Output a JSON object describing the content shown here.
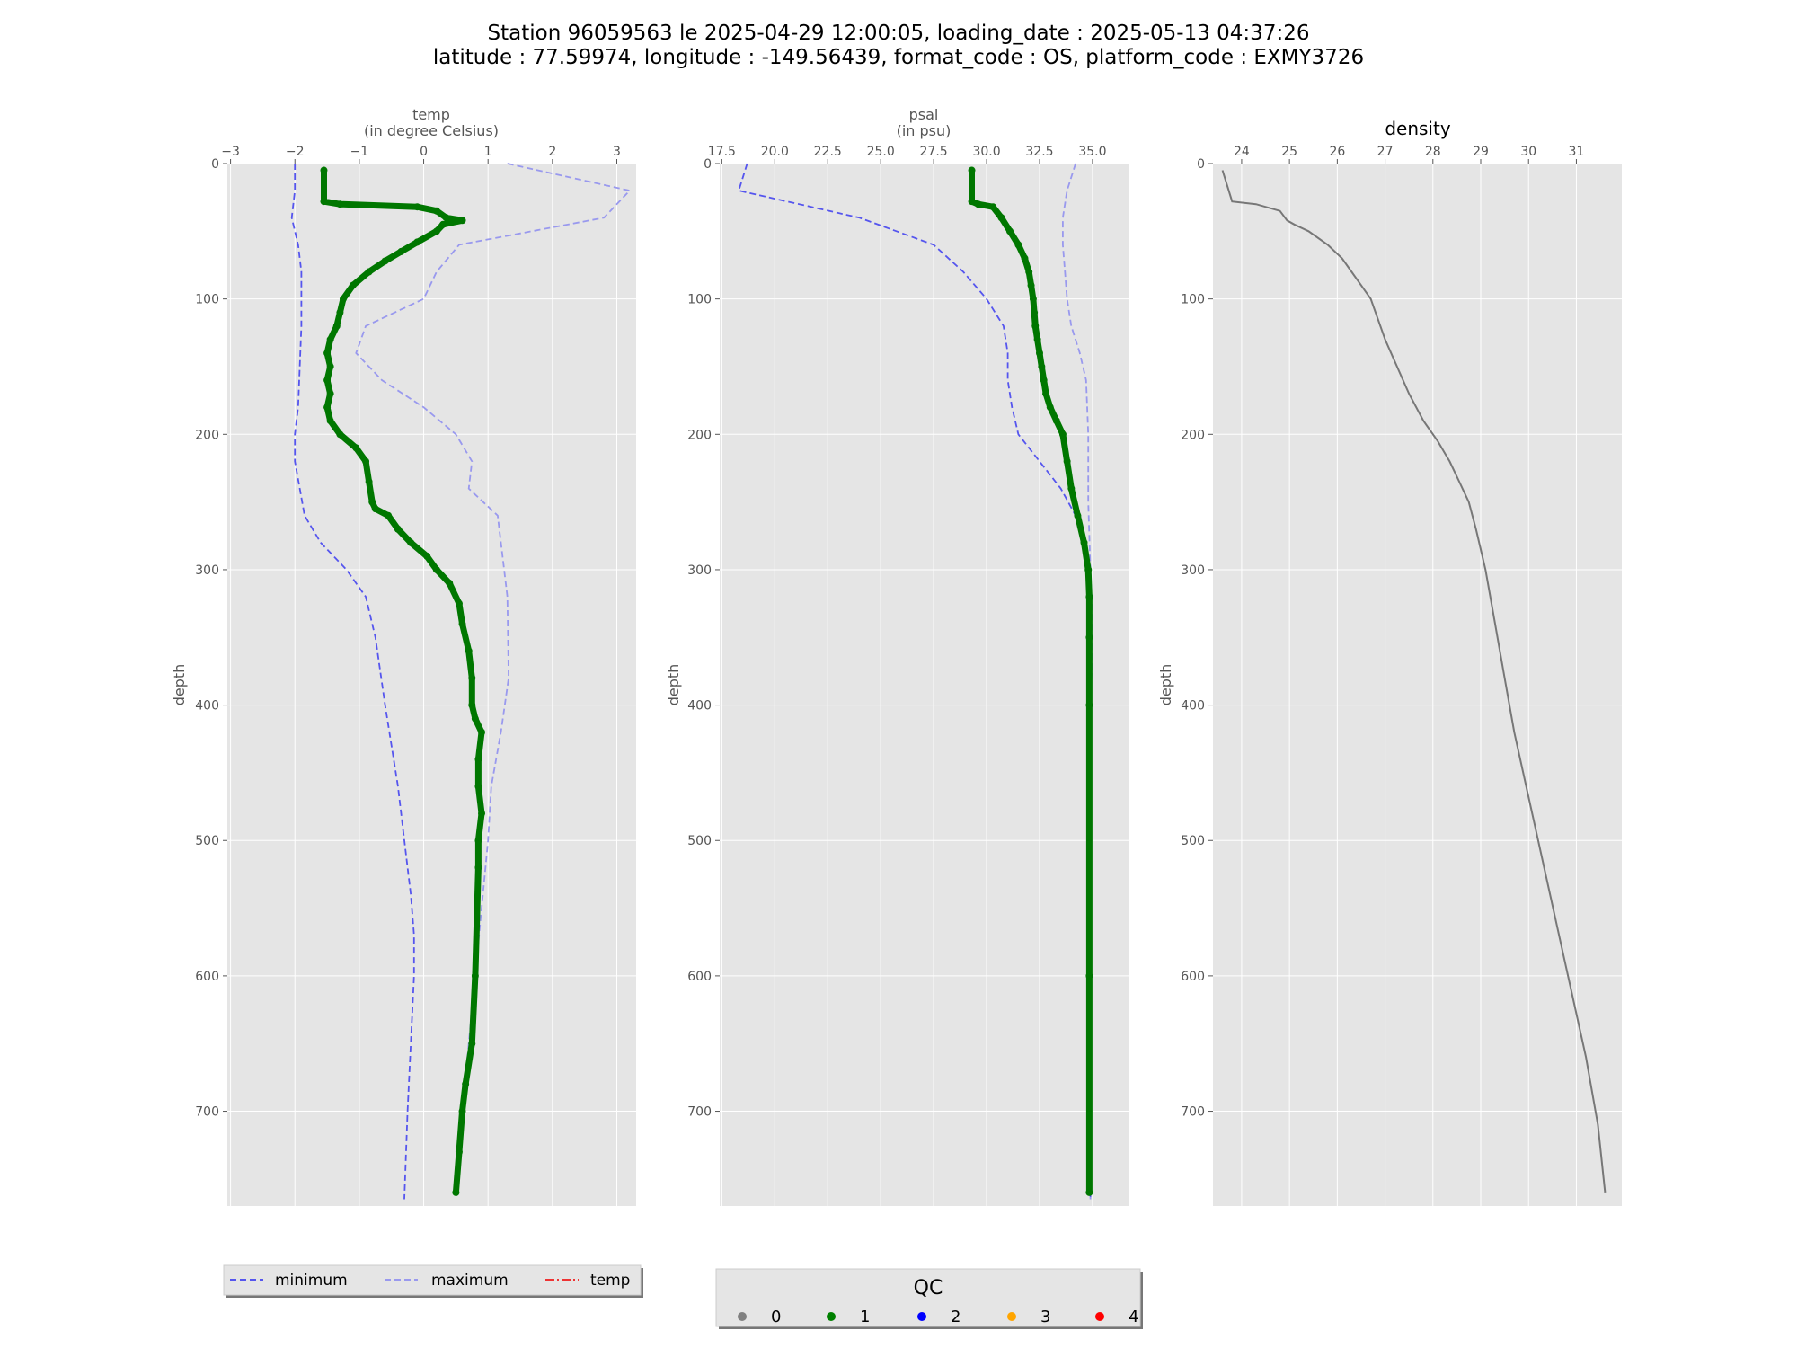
{
  "figure": {
    "title_line1": "Station 96059563 le 2025-04-29 12:00:05, loading_date : 2025-05-13 04:37:26",
    "title_line2": "latitude : 77.59974, longitude : -149.56439, format_code : OS, platform_code : EXMY3726"
  },
  "colors": {
    "panel_bg": "#e5e5e5",
    "grid": "#ffffff",
    "minimum": "#5555ee",
    "maximum": "#9999ee",
    "temp_line": "#ee3333",
    "qc1": "#007700",
    "density": "#777777"
  },
  "legend": {
    "items": [
      {
        "label": "minimum",
        "style": "dashed",
        "color": "#5555ee"
      },
      {
        "label": "maximum",
        "style": "dashed",
        "color": "#9999ee"
      },
      {
        "label": "temp",
        "style": "dashdot",
        "color": "#ee3333"
      }
    ]
  },
  "qc_legend": {
    "title": "QC",
    "items": [
      {
        "label": "0",
        "color": "#808080"
      },
      {
        "label": "1",
        "color": "#008000"
      },
      {
        "label": "2",
        "color": "#0000ff"
      },
      {
        "label": "3",
        "color": "#ffa500"
      },
      {
        "label": "4",
        "color": "#ff0000"
      }
    ]
  },
  "chart_data": [
    {
      "type": "line",
      "id": "temp",
      "xlabel_line1": "temp",
      "xlabel_line2": "(in degree Celsius)",
      "ylabel": "depth",
      "xlim": [
        -3.05,
        3.3
      ],
      "ylim": [
        0,
        770
      ],
      "y_inverted": true,
      "x_axis_position": "top",
      "xticks": [
        -3,
        -2,
        -1,
        0,
        1,
        2,
        3
      ],
      "xtick_labels": [
        "−3",
        "−2",
        "−1",
        "0",
        "1",
        "2",
        "3"
      ],
      "yticks": [
        0,
        100,
        200,
        300,
        400,
        500,
        600,
        700
      ],
      "grid": true,
      "series": [
        {
          "name": "minimum",
          "style": "dashed",
          "x": [
            -2.0,
            -2.0,
            -2.05,
            -1.95,
            -1.9,
            -1.9,
            -1.95,
            -2.0,
            -2.0,
            -1.85,
            -1.6,
            -1.2,
            -0.9,
            -0.75,
            -0.6,
            -0.4,
            -0.3,
            -0.2,
            -0.15,
            -0.15,
            -0.2,
            -0.25,
            -0.3
          ],
          "y": [
            0,
            20,
            40,
            60,
            80,
            120,
            180,
            200,
            220,
            260,
            280,
            300,
            320,
            350,
            400,
            460,
            500,
            540,
            570,
            600,
            650,
            700,
            765
          ]
        },
        {
          "name": "maximum",
          "style": "dashed",
          "x": [
            1.3,
            3.2,
            2.8,
            0.55,
            0.2,
            0.0,
            -0.9,
            -1.05,
            -0.65,
            0.0,
            0.5,
            0.75,
            0.7,
            1.15,
            1.2,
            1.25,
            1.3,
            1.32,
            1.2,
            1.05,
            1.0,
            0.9,
            0.8,
            0.7,
            0.6,
            0.55
          ],
          "y": [
            0,
            20,
            40,
            60,
            80,
            100,
            120,
            140,
            160,
            180,
            200,
            220,
            240,
            260,
            280,
            300,
            320,
            380,
            420,
            460,
            500,
            550,
            600,
            650,
            700,
            740
          ]
        },
        {
          "name": "temp",
          "qc": 1,
          "x": [
            -1.55,
            -1.55,
            -1.3,
            -0.1,
            0.2,
            0.35,
            0.6,
            0.3,
            0.2,
            -0.1,
            -0.35,
            -0.6,
            -0.85,
            -1.1,
            -1.25,
            -1.3,
            -1.35,
            -1.45,
            -1.5,
            -1.45,
            -1.5,
            -1.45,
            -1.5,
            -1.45,
            -1.3,
            -1.05,
            -0.9,
            -0.85,
            -0.8,
            -0.75,
            -0.55,
            -0.4,
            -0.2,
            0.05,
            0.2,
            0.4,
            0.55,
            0.6,
            0.7,
            0.75,
            0.75,
            0.8,
            0.9,
            0.85,
            0.85,
            0.9,
            0.85,
            0.85,
            0.8,
            0.75,
            0.65,
            0.6,
            0.55,
            0.5
          ],
          "y": [
            5,
            28,
            30,
            32,
            35,
            40,
            42,
            45,
            50,
            58,
            65,
            72,
            80,
            90,
            100,
            110,
            120,
            130,
            140,
            150,
            160,
            170,
            180,
            190,
            200,
            210,
            220,
            235,
            250,
            255,
            260,
            270,
            280,
            290,
            300,
            310,
            325,
            340,
            360,
            380,
            400,
            410,
            420,
            440,
            460,
            480,
            500,
            520,
            600,
            650,
            680,
            700,
            730,
            760
          ]
        }
      ]
    },
    {
      "type": "line",
      "id": "psal",
      "xlabel_line1": "psal",
      "xlabel_line2": "(in psu)",
      "ylabel": "depth",
      "xlim": [
        17.4,
        36.7
      ],
      "ylim": [
        0,
        770
      ],
      "y_inverted": true,
      "x_axis_position": "top",
      "xticks": [
        17.5,
        20.0,
        22.5,
        25.0,
        27.5,
        30.0,
        32.5,
        35.0
      ],
      "xtick_labels": [
        "17.5",
        "20.0",
        "22.5",
        "25.0",
        "27.5",
        "30.0",
        "32.5",
        "35.0"
      ],
      "yticks": [
        0,
        100,
        200,
        300,
        400,
        500,
        600,
        700
      ],
      "grid": true,
      "series": [
        {
          "name": "minimum",
          "style": "dashed",
          "x": [
            18.7,
            18.3,
            24.0,
            27.5,
            28.9,
            30.0,
            30.8,
            31.0,
            31.0,
            31.2,
            31.5,
            32.5,
            33.5,
            34.2,
            34.7,
            34.8,
            34.85,
            34.9,
            34.9,
            34.9,
            34.9
          ],
          "y": [
            0,
            20,
            40,
            60,
            80,
            100,
            120,
            140,
            160,
            180,
            200,
            220,
            240,
            260,
            280,
            300,
            320,
            350,
            400,
            600,
            765
          ]
        },
        {
          "name": "maximum",
          "style": "dashed",
          "x": [
            34.2,
            33.8,
            33.6,
            33.6,
            33.7,
            33.8,
            34.0,
            34.4,
            34.7,
            34.8,
            34.8,
            34.9,
            35.0,
            35.0,
            34.9,
            34.9,
            34.9
          ],
          "y": [
            0,
            20,
            40,
            60,
            80,
            100,
            120,
            140,
            160,
            200,
            250,
            300,
            330,
            360,
            400,
            600,
            765
          ]
        },
        {
          "name": "psal",
          "qc": 1,
          "x": [
            29.3,
            29.3,
            29.6,
            30.3,
            30.7,
            31.1,
            31.5,
            31.8,
            32.0,
            32.1,
            32.2,
            32.25,
            32.3,
            32.4,
            32.5,
            32.6,
            32.7,
            32.8,
            33.0,
            33.3,
            33.6,
            33.8,
            34.0,
            34.3,
            34.6,
            34.8,
            34.85,
            34.85,
            34.85,
            34.85,
            34.85
          ],
          "y": [
            5,
            28,
            30,
            32,
            40,
            50,
            60,
            70,
            80,
            90,
            100,
            110,
            120,
            130,
            140,
            150,
            160,
            170,
            180,
            190,
            200,
            220,
            240,
            260,
            280,
            300,
            320,
            350,
            400,
            600,
            760
          ]
        }
      ]
    },
    {
      "type": "line",
      "id": "density",
      "title": "density",
      "ylabel": "depth",
      "xlim": [
        23.4,
        31.95
      ],
      "ylim": [
        0,
        770
      ],
      "y_inverted": true,
      "x_axis_position": "top",
      "xticks": [
        24,
        25,
        26,
        27,
        28,
        29,
        30,
        31
      ],
      "xtick_labels": [
        "24",
        "25",
        "26",
        "27",
        "28",
        "29",
        "30",
        "31"
      ],
      "yticks": [
        0,
        100,
        200,
        300,
        400,
        500,
        600,
        700
      ],
      "grid": true,
      "series": [
        {
          "name": "density",
          "x": [
            23.6,
            23.8,
            24.3,
            24.8,
            24.95,
            25.1,
            25.4,
            25.8,
            26.1,
            26.3,
            26.5,
            26.7,
            26.9,
            27.0,
            27.25,
            27.5,
            27.8,
            28.1,
            28.35,
            28.55,
            28.75,
            28.9,
            29.1,
            29.3,
            29.5,
            29.7,
            29.95,
            30.2,
            30.45,
            30.7,
            30.95,
            31.2,
            31.45,
            31.6
          ],
          "y": [
            5,
            28,
            30,
            35,
            42,
            45,
            50,
            60,
            70,
            80,
            90,
            100,
            120,
            130,
            150,
            170,
            190,
            205,
            220,
            235,
            250,
            270,
            300,
            340,
            380,
            420,
            460,
            500,
            540,
            580,
            620,
            660,
            710,
            760
          ]
        }
      ]
    }
  ]
}
